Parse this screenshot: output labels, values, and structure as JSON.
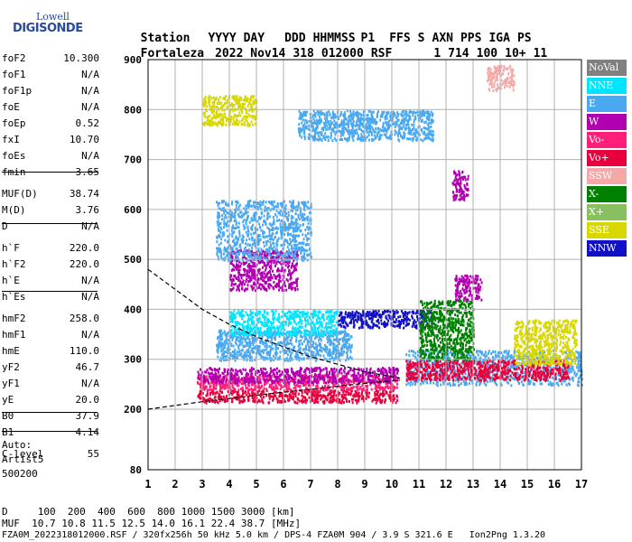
{
  "logo": {
    "line1": "Lowell",
    "line2": "DIGISONDE"
  },
  "header": {
    "cols": [
      "Station",
      "YYYY DAY",
      "DDD",
      "HHMMSS",
      "P1",
      "FFS",
      "S",
      "AXN",
      "PPS",
      "IGA",
      "PS"
    ],
    "values": [
      "Fortaleza",
      "2022 Nov14",
      "318",
      "012000",
      "RSF",
      "1",
      "714",
      "100",
      "10+",
      "11"
    ]
  },
  "params": [
    {
      "k": "foF2",
      "v": "10.300"
    },
    {
      "k": "foF1",
      "v": "N/A"
    },
    {
      "k": "foF1p",
      "v": "N/A"
    },
    {
      "k": "foE",
      "v": "N/A"
    },
    {
      "k": "foEp",
      "v": "0.52"
    },
    {
      "k": "fxI",
      "v": "10.70"
    },
    {
      "k": "foEs",
      "v": "N/A"
    },
    {
      "k": "fmin",
      "v": "3.65"
    },
    {
      "k": "MUF(D)",
      "v": "38.74"
    },
    {
      "k": "M(D)",
      "v": "3.76"
    },
    {
      "k": "D",
      "v": "N/A"
    },
    {
      "k": "h`F",
      "v": "220.0"
    },
    {
      "k": "h`F2",
      "v": "220.0"
    },
    {
      "k": "h`E",
      "v": "N/A"
    },
    {
      "k": "h`Es",
      "v": "N/A"
    },
    {
      "k": "hmF2",
      "v": "258.0"
    },
    {
      "k": "hmF1",
      "v": "N/A"
    },
    {
      "k": "hmE",
      "v": "110.0"
    },
    {
      "k": "yF2",
      "v": "46.7"
    },
    {
      "k": "yF1",
      "v": "N/A"
    },
    {
      "k": "yE",
      "v": "20.0"
    },
    {
      "k": "B0",
      "v": "37.9"
    },
    {
      "k": "B1",
      "v": "4.14"
    },
    {
      "k": "C-level",
      "v": "55"
    }
  ],
  "auto": [
    "Auto:",
    "Artist5",
    "500200"
  ],
  "legend": [
    {
      "label": "NoVal",
      "color": "#808080"
    },
    {
      "label": "NNE",
      "color": "#00e5ff"
    },
    {
      "label": "E",
      "color": "#4aa8f0"
    },
    {
      "label": "W",
      "color": "#b000b0"
    },
    {
      "label": "Vo-",
      "color": "#ff1e78"
    },
    {
      "label": "Vo+",
      "color": "#e8003c"
    },
    {
      "label": "SSW",
      "color": "#f4a8a8"
    },
    {
      "label": "X-",
      "color": "#008000"
    },
    {
      "label": "X+",
      "color": "#88c060"
    },
    {
      "label": "SSE",
      "color": "#d8d800"
    },
    {
      "label": "NNW",
      "color": "#1010c8"
    }
  ],
  "footer": {
    "line1": "D     100  200  400  600  800 1000 1500 3000 [km]",
    "line2": "MUF  10.7 10.8 11.5 12.5 14.0 16.1 22.4 38.7 [MHz]",
    "line3": "FZA0M_2022318012000.RSF / 320fx256h 50 kHz 5.0 km / DPS-4 FZA0M 904 / 3.9 S 321.6 E   Ion2Png 1.3.20"
  },
  "chart_data": {
    "type": "scatter",
    "xlim": [
      1,
      17
    ],
    "ylim": [
      80,
      900
    ],
    "xticks": [
      "1",
      "2",
      "3",
      "4",
      "5",
      "6",
      "7",
      "8",
      "9",
      "10",
      "11",
      "12",
      "13",
      "14",
      "15",
      "16",
      "17"
    ],
    "yticks": [
      "80",
      "200",
      "300",
      "400",
      "500",
      "600",
      "700",
      "800",
      "900"
    ],
    "ytick_values": [
      80,
      200,
      300,
      400,
      500,
      600,
      700,
      800,
      900
    ],
    "grid": true,
    "trace_lower": {
      "x": [
        1.0,
        3.0,
        5.0,
        7.0,
        9.0,
        10.3
      ],
      "y": [
        200,
        215,
        228,
        240,
        252,
        258
      ]
    },
    "trace_upper": {
      "x": [
        1.0,
        2.0,
        3.0,
        4.0,
        5.0,
        6.0,
        7.0,
        8.0,
        9.0,
        10.3
      ],
      "y": [
        480,
        440,
        400,
        370,
        345,
        325,
        305,
        290,
        275,
        262
      ]
    },
    "clusters": [
      {
        "x": [
          2.8,
          10.2
        ],
        "y": [
          215,
          240
        ],
        "color": "#e8003c"
      },
      {
        "x": [
          2.8,
          10.2
        ],
        "y": [
          240,
          270
        ],
        "color": "#ff1e78"
      },
      {
        "x": [
          2.8,
          10.2
        ],
        "y": [
          255,
          285
        ],
        "color": "#b000b0"
      },
      {
        "x": [
          3.5,
          8.5
        ],
        "y": [
          300,
          360
        ],
        "color": "#4aa8f0"
      },
      {
        "x": [
          4.0,
          8.0
        ],
        "y": [
          350,
          400
        ],
        "color": "#00e5ff"
      },
      {
        "x": [
          8.0,
          11.5
        ],
        "y": [
          365,
          400
        ],
        "color": "#1010c8"
      },
      {
        "x": [
          10.5,
          17.0
        ],
        "y": [
          250,
          320
        ],
        "color": "#4aa8f0"
      },
      {
        "x": [
          10.5,
          16.5
        ],
        "y": [
          260,
          300
        ],
        "color": "#e8003c"
      },
      {
        "x": [
          14.5,
          16.8
        ],
        "y": [
          290,
          380
        ],
        "color": "#d8d800"
      },
      {
        "x": [
          4.0,
          6.5
        ],
        "y": [
          440,
          520
        ],
        "color": "#b000b0"
      },
      {
        "x": [
          3.5,
          7.0
        ],
        "y": [
          500,
          620
        ],
        "color": "#4aa8f0"
      },
      {
        "x": [
          12.3,
          13.3
        ],
        "y": [
          420,
          470
        ],
        "color": "#b000b0"
      },
      {
        "x": [
          12.2,
          12.8
        ],
        "y": [
          620,
          680
        ],
        "color": "#b000b0"
      },
      {
        "x": [
          6.5,
          11.5
        ],
        "y": [
          740,
          800
        ],
        "color": "#4aa8f0"
      },
      {
        "x": [
          3.0,
          5.0
        ],
        "y": [
          770,
          830
        ],
        "color": "#d8d800"
      },
      {
        "x": [
          13.5,
          14.5
        ],
        "y": [
          840,
          890
        ],
        "color": "#f4a8a8"
      },
      {
        "x": [
          11.0,
          13.0
        ],
        "y": [
          300,
          420
        ],
        "color": "#008000"
      }
    ]
  }
}
